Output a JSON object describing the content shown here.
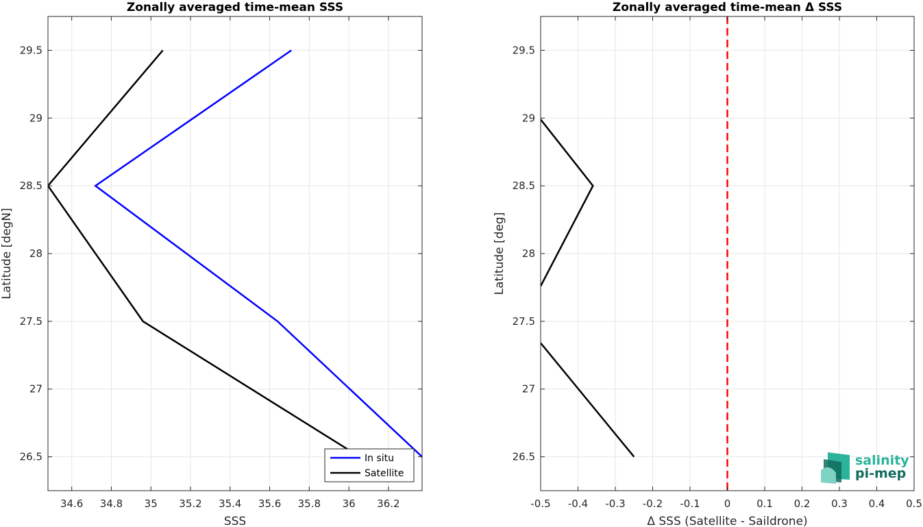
{
  "chart_data": [
    {
      "type": "line",
      "title": "Zonally averaged time-mean SSS",
      "xlabel": "SSS",
      "ylabel": "Latitude [degN]",
      "xlim": [
        34.48,
        36.37
      ],
      "ylim": [
        26.25,
        29.75
      ],
      "xticks": [
        34.6,
        34.8,
        35,
        35.2,
        35.4,
        35.6,
        35.8,
        36,
        36.2
      ],
      "xtick_labels": [
        "34.6",
        "34.8",
        "35",
        "35.2",
        "35.4",
        "35.6",
        "35.8",
        "36",
        "36.2"
      ],
      "yticks": [
        26.5,
        27,
        27.5,
        28,
        28.5,
        29,
        29.5
      ],
      "ytick_labels": [
        "26.5",
        "27",
        "27.5",
        "28",
        "28.5",
        "29",
        "29.5"
      ],
      "grid": true,
      "legend": "bottom-right",
      "series": [
        {
          "name": "In situ",
          "color": "#0000ff",
          "x": [
            36.37,
            35.64,
            34.72,
            35.71
          ],
          "y": [
            26.5,
            27.5,
            28.5,
            29.5
          ]
        },
        {
          "name": "Satellite",
          "color": "#000000",
          "x": [
            36.0,
            34.96,
            34.48,
            35.06
          ],
          "y": [
            26.55,
            27.5,
            28.5,
            29.5
          ]
        }
      ]
    },
    {
      "type": "line",
      "title": "Zonally averaged time-mean Δ SSS",
      "xlabel": "Δ SSS (Satellite - Saildrone)",
      "ylabel": "Latitude [deg]",
      "xlim": [
        -0.5,
        0.5
      ],
      "ylim": [
        26.25,
        29.75
      ],
      "xticks": [
        -0.5,
        -0.4,
        -0.3,
        -0.2,
        -0.1,
        0,
        0.1,
        0.2,
        0.3,
        0.4,
        0.5
      ],
      "xtick_labels": [
        "-0.5",
        "-0.4",
        "-0.3",
        "-0.2",
        "-0.1",
        "0",
        "0.1",
        "0.2",
        "0.3",
        "0.4",
        "0.5"
      ],
      "yticks": [
        26.5,
        27,
        27.5,
        28,
        28.5,
        29,
        29.5
      ],
      "ytick_labels": [
        "26.5",
        "27",
        "27.5",
        "28",
        "28.5",
        "29",
        "29.5"
      ],
      "grid": true,
      "reference_line": {
        "x": 0,
        "color": "#ff0000",
        "style": "dashed"
      },
      "series": [
        {
          "color": "#000000",
          "segments": [
            {
              "x": [
                -0.25,
                -0.5
              ],
              "y": [
                26.5,
                27.34
              ]
            },
            {
              "x": [
                -0.5,
                -0.36,
                -0.5
              ],
              "y": [
                27.76,
                28.5,
                28.99
              ]
            }
          ]
        }
      ]
    }
  ],
  "logo": {
    "line1": "salinity",
    "line2": "pi-mep",
    "colors": {
      "line1": "#2bb39b",
      "line2": "#116b5e"
    }
  }
}
